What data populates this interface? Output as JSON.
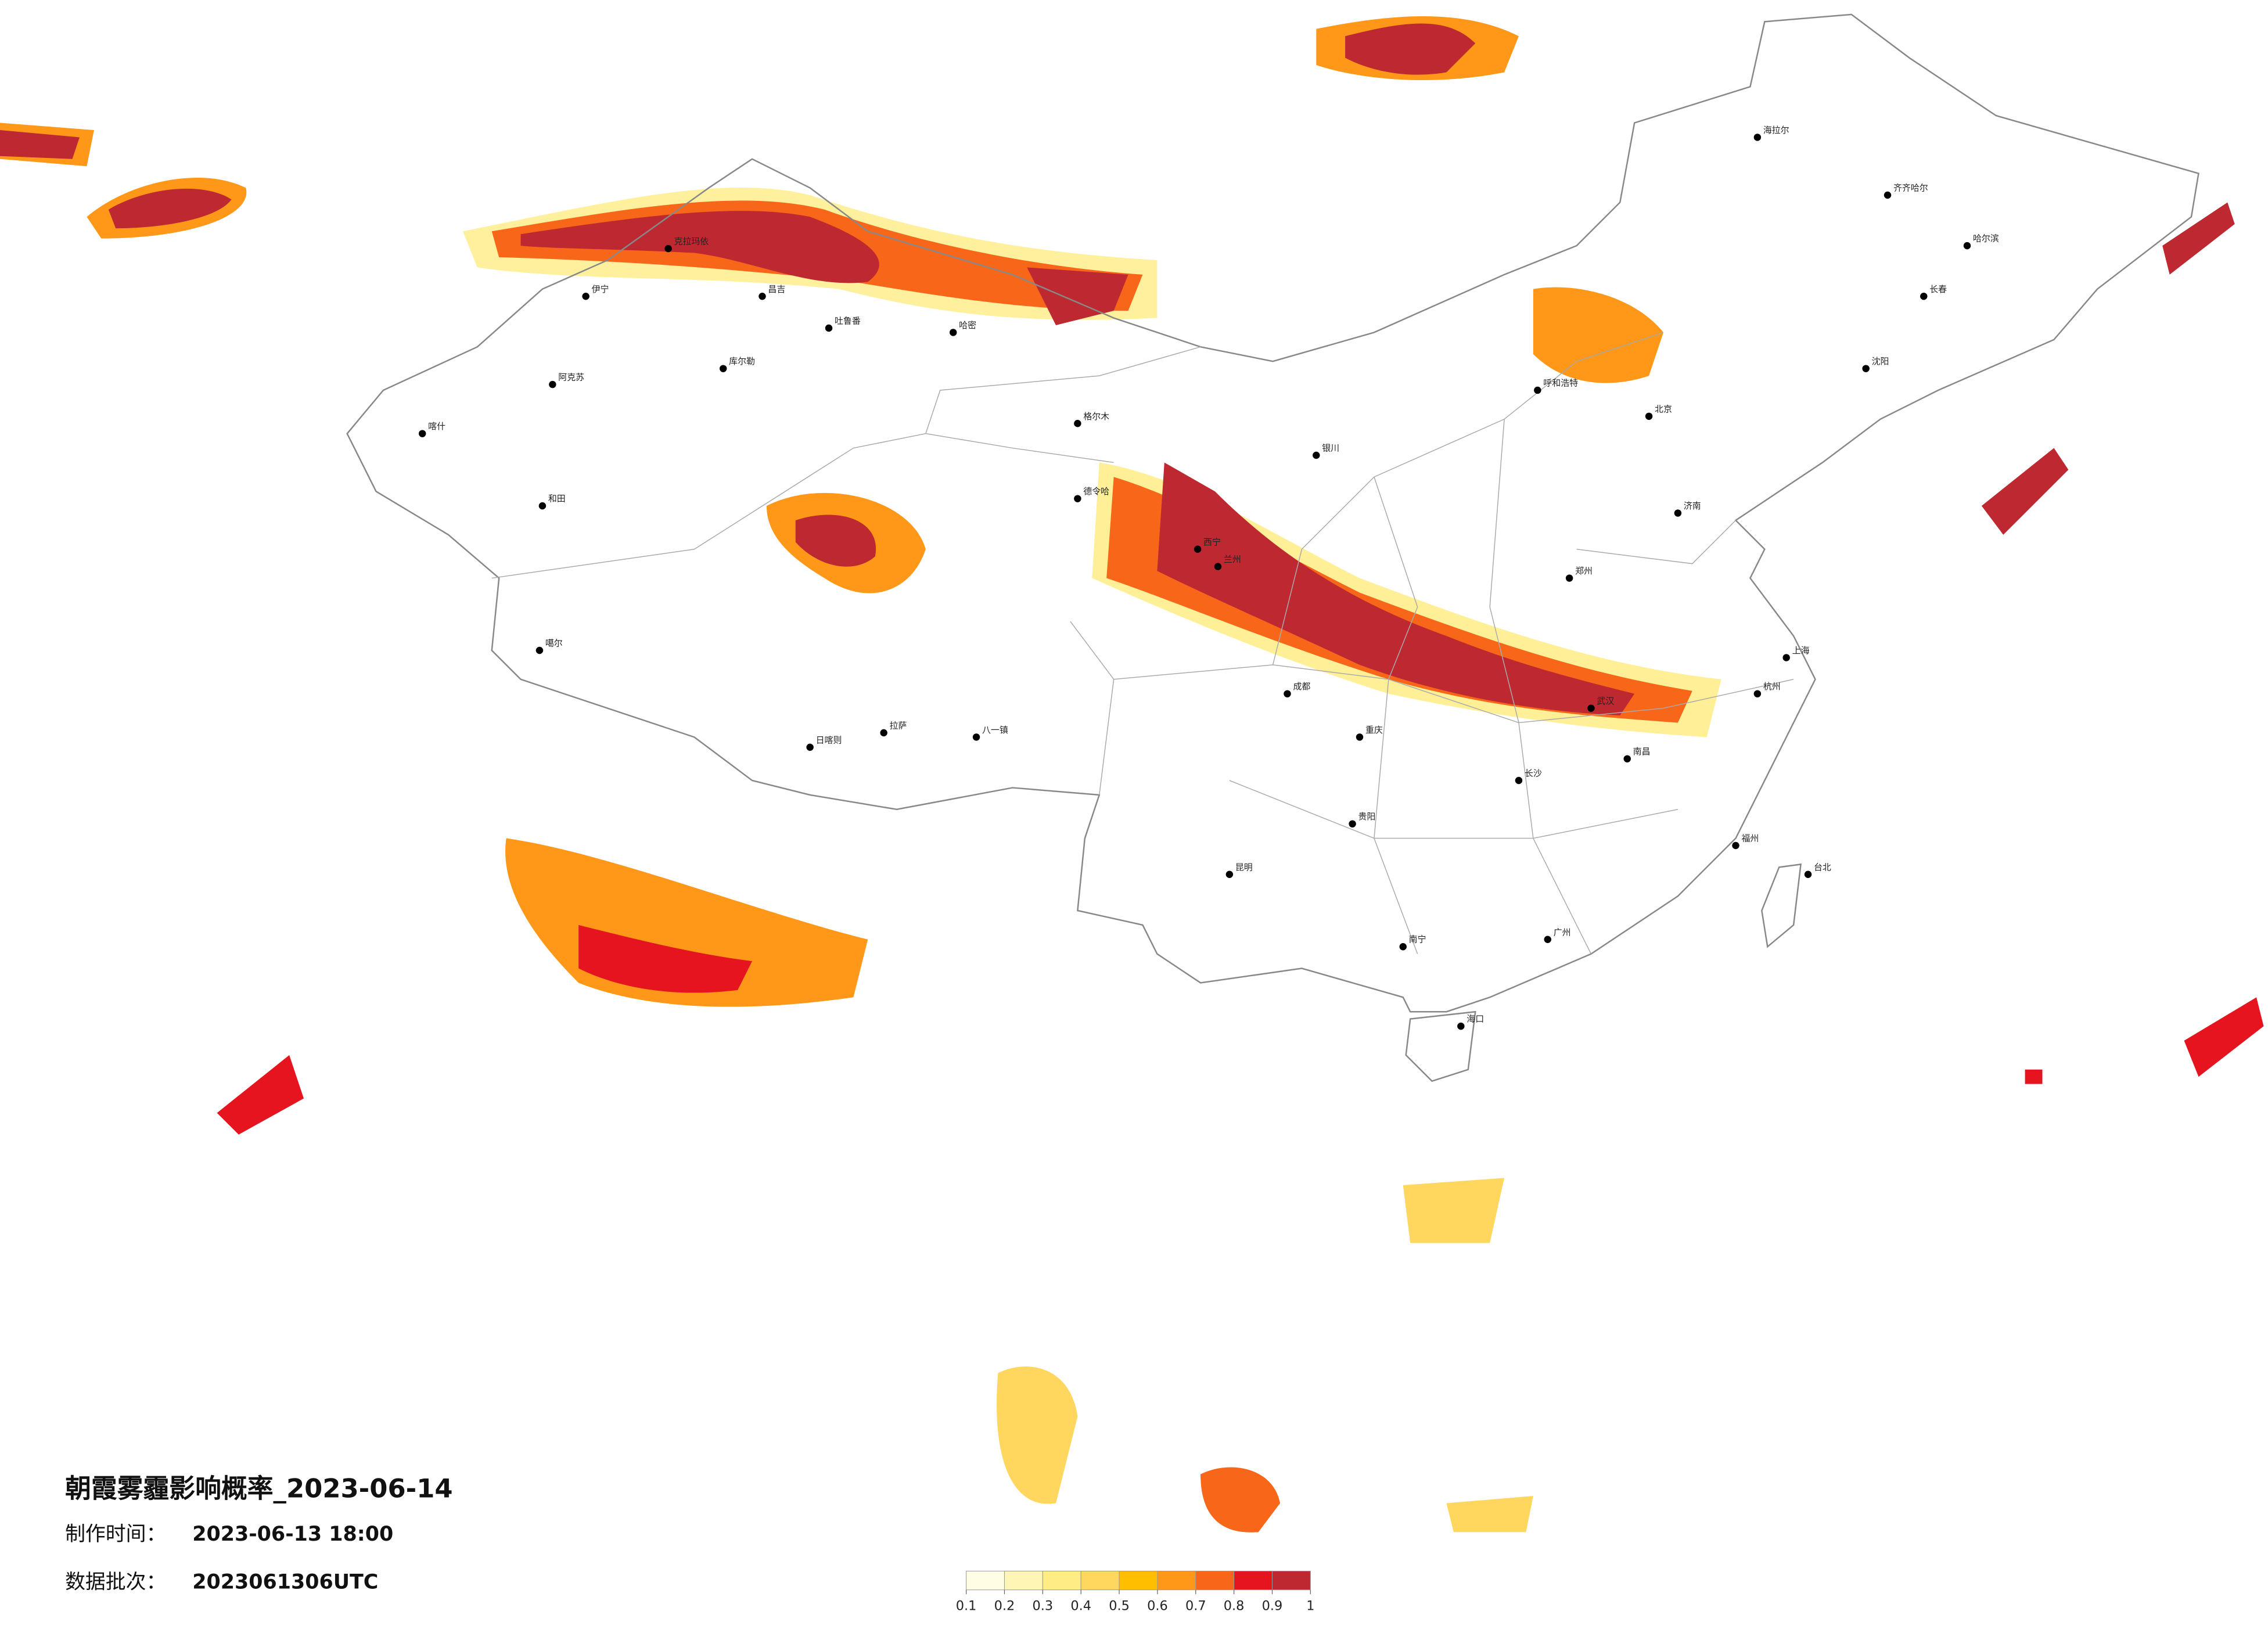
{
  "title": "朝霞雾霾影响概率_2023-06-14",
  "made_time": {
    "label": "制作时间：",
    "value": "2023-06-13 18:00"
  },
  "batch": {
    "label": "数据批次：",
    "value": "2023061306UTC"
  },
  "legend": {
    "ticks": [
      0.1,
      0.2,
      0.3,
      0.4,
      0.5,
      0.6,
      0.7,
      0.8,
      0.9,
      1
    ],
    "colors": [
      "#fffde3",
      "#fff6b5",
      "#ffec84",
      "#ffd75e",
      "#ffbf00",
      "#ff9818",
      "#f8661a",
      "#e6141f",
      "#be2830"
    ]
  },
  "cities": [
    "伊宁",
    "克拉玛依",
    "昌吉",
    "吐鲁番",
    "哈密",
    "阿克苏",
    "库尔勒",
    "喀什",
    "和田",
    "噶尔",
    "日喀则",
    "拉萨",
    "八一镇",
    "格尔木",
    "德令哈",
    "西宁",
    "兰州",
    "银川",
    "呼和浩特",
    "北京",
    "哈尔滨",
    "长春",
    "沈阳",
    "齐齐哈尔",
    "海拉尔",
    "济南",
    "郑州",
    "武汉",
    "南昌",
    "长沙",
    "重庆",
    "成都",
    "贵阳",
    "昆明",
    "南宁",
    "广州",
    "海口",
    "台北",
    "上海",
    "杭州",
    "福州"
  ]
}
